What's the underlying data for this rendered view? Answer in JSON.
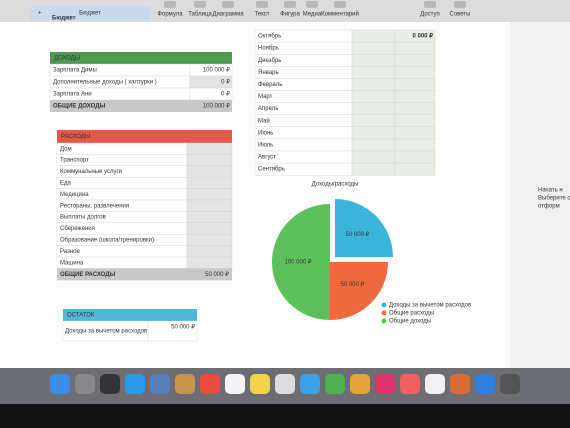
{
  "toolbar": {
    "tab": "Бюджет",
    "buttons": [
      "Формула",
      "Таблица",
      "Диаграмма",
      "Текст",
      "Фигура",
      "Медиа",
      "Комментарий",
      "Доступ",
      "Советы"
    ]
  },
  "sheet_title": "Бюджет",
  "income": {
    "header": "ДОХОДЫ",
    "rows": [
      [
        "Зарплата Димы",
        "100 000 ₽"
      ],
      [
        "Дополнительные доходы ( халтурки )",
        "0 ₽"
      ],
      [
        "Зарплата Ани",
        "0 ₽"
      ]
    ],
    "total": [
      "ОБЩИЕ ДОХОДЫ",
      "100 000 ₽"
    ]
  },
  "expenses": {
    "header": "РАСХОДЫ",
    "rows": [
      "Дом",
      "Транспорт",
      "Коммунальные услуги",
      "Еда",
      "Медицина",
      "Рестораны, развлечения",
      "Выплаты долгов",
      "Сбережения",
      "Образование (школа/тренировки)",
      "Разное",
      "Машина"
    ],
    "total": [
      "ОБЩИЕ РАСХОДЫ",
      "50 000 ₽"
    ]
  },
  "balance": {
    "header": "ОСТАТОК",
    "label": "Доходы за вычетом расходов",
    "value": "50 000 ₽"
  },
  "months": {
    "names": [
      "Октябрь",
      "Ноябрь",
      "Декабрь",
      "Январь",
      "Февраль",
      "Март",
      "Апрель",
      "Май",
      "Июнь",
      "Июль",
      "Август",
      "Сентябрь"
    ],
    "first_value": "0 000 ₽"
  },
  "chart": {
    "type": "pie",
    "title": "Доходы/расходы",
    "categories": [
      "Доходы за вычетом расходов",
      "Общие расходы",
      "Общие доходы"
    ],
    "values": [
      50000,
      50000,
      100000
    ],
    "value_labels": [
      "50 000 ₽",
      "50 000 ₽",
      "100 000 ₽"
    ],
    "colors": [
      "#3bb4dc",
      "#ee6a3e",
      "#5cc05c"
    ]
  },
  "sidebar": [
    "Начать н",
    "Выберите объ",
    "отформ"
  ]
}
